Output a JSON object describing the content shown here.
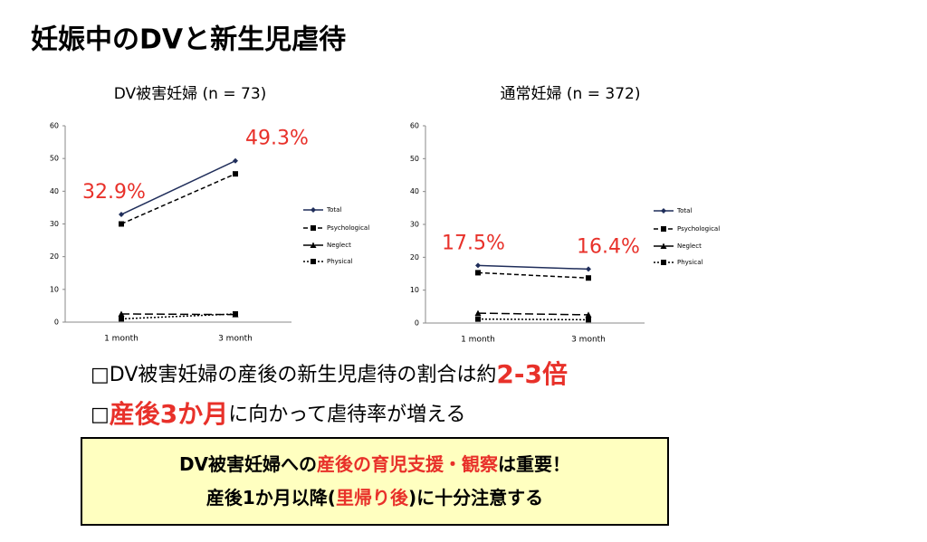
{
  "title": "妊娠中のDVと新生児虐待",
  "chart_data": [
    {
      "type": "line",
      "title": "DV被害妊婦 (n = 73)",
      "categories": [
        "1 month",
        "3 month"
      ],
      "ylim": [
        0,
        60
      ],
      "yticks": [
        0,
        10,
        20,
        30,
        40,
        50,
        60
      ],
      "series": [
        {
          "name": "Total",
          "color": "#1f2d5a",
          "line_style": "solid",
          "marker": "diamond",
          "values": [
            32.9,
            49.3
          ],
          "value_labels": [
            "32.9%",
            "49.3%"
          ],
          "label_color": "#e8312a"
        },
        {
          "name": "Psychological",
          "color": "#000000",
          "line_style": "dashed",
          "marker": "square",
          "values": [
            30,
            45.3
          ]
        },
        {
          "name": "Neglect",
          "color": "#000000",
          "line_style": "long-dash",
          "marker": "triangle",
          "values": [
            2.5,
            2.3
          ]
        },
        {
          "name": "Physical",
          "color": "#000000",
          "line_style": "dotted",
          "marker": "square",
          "values": [
            1,
            2.5
          ]
        }
      ]
    },
    {
      "type": "line",
      "title": "通常妊婦 (n = 372)",
      "categories": [
        "1 month",
        "3 month"
      ],
      "ylim": [
        0,
        60
      ],
      "yticks": [
        0,
        10,
        20,
        30,
        40,
        50,
        60
      ],
      "series": [
        {
          "name": "Total",
          "color": "#1f2d5a",
          "line_style": "solid",
          "marker": "diamond",
          "values": [
            17.5,
            16.4
          ],
          "value_labels": [
            "17.5%",
            "16.4%"
          ],
          "label_color": "#e8312a"
        },
        {
          "name": "Psychological",
          "color": "#000000",
          "line_style": "dashed",
          "marker": "square",
          "values": [
            15.3,
            13.7
          ]
        },
        {
          "name": "Neglect",
          "color": "#000000",
          "line_style": "long-dash",
          "marker": "triangle",
          "values": [
            3,
            2.5
          ]
        },
        {
          "name": "Physical",
          "color": "#000000",
          "line_style": "dotted",
          "marker": "square",
          "values": [
            1.2,
            1
          ]
        }
      ]
    }
  ],
  "bullets": [
    [
      {
        "text": "□DV被害妊婦の産後の新生児虐待の割合は約",
        "highlight": false
      },
      {
        "text": "2-3倍",
        "highlight": true
      }
    ],
    [
      {
        "text": "□",
        "highlight": false
      },
      {
        "text": "産後3か月",
        "highlight": true
      },
      {
        "text": "に向かって虐待率が増える",
        "highlight": false
      }
    ]
  ],
  "box": [
    [
      {
        "text": "DV被害妊婦への",
        "highlight": false
      },
      {
        "text": "産後の育児支援・観察",
        "highlight": true
      },
      {
        "text": "は重要！",
        "highlight": false
      }
    ],
    [
      {
        "text": "産後1か月以降(",
        "highlight": false
      },
      {
        "text": "里帰り後",
        "highlight": true
      },
      {
        "text": ")に十分注意する",
        "highlight": false
      }
    ]
  ]
}
